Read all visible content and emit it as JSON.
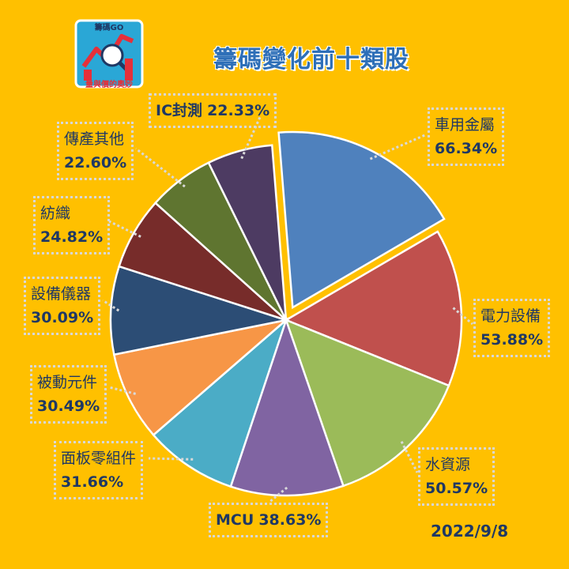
{
  "logo": {
    "top_text": "籌碼GO",
    "bottom_text": "量與價的奧妙"
  },
  "title": "籌碼變化前十類股",
  "date": "2022/9/8",
  "chart_data": {
    "type": "pie",
    "title": "籌碼變化前十類股",
    "slices": [
      {
        "label": "車用金屬",
        "value": 66.34,
        "pct_text": "66.34%",
        "color": "#4F81BD",
        "exploded": true
      },
      {
        "label": "電力設備",
        "value": 53.88,
        "pct_text": "53.88%",
        "color": "#C0504D"
      },
      {
        "label": "水資源",
        "value": 50.57,
        "pct_text": "50.57%",
        "color": "#9BBB59"
      },
      {
        "label": "MCU",
        "value": 38.63,
        "pct_text": "38.63%",
        "color": "#8064A2"
      },
      {
        "label": "面板零組件",
        "value": 31.66,
        "pct_text": "31.66%",
        "color": "#4BACC6"
      },
      {
        "label": "被動元件",
        "value": 30.49,
        "pct_text": "30.49%",
        "color": "#F79646"
      },
      {
        "label": "設備儀器",
        "value": 30.09,
        "pct_text": "30.09%",
        "color": "#2C4D75"
      },
      {
        "label": "紡織",
        "value": 24.82,
        "pct_text": "24.82%",
        "color": "#772C2A"
      },
      {
        "label": "傳產其他",
        "value": 22.6,
        "pct_text": "22.60%",
        "color": "#5F7530"
      },
      {
        "label": "IC封測",
        "value": 22.33,
        "pct_text": "22.33%",
        "color": "#4D3B62"
      }
    ],
    "legend": "none",
    "data_labels": "outside with leader lines"
  }
}
